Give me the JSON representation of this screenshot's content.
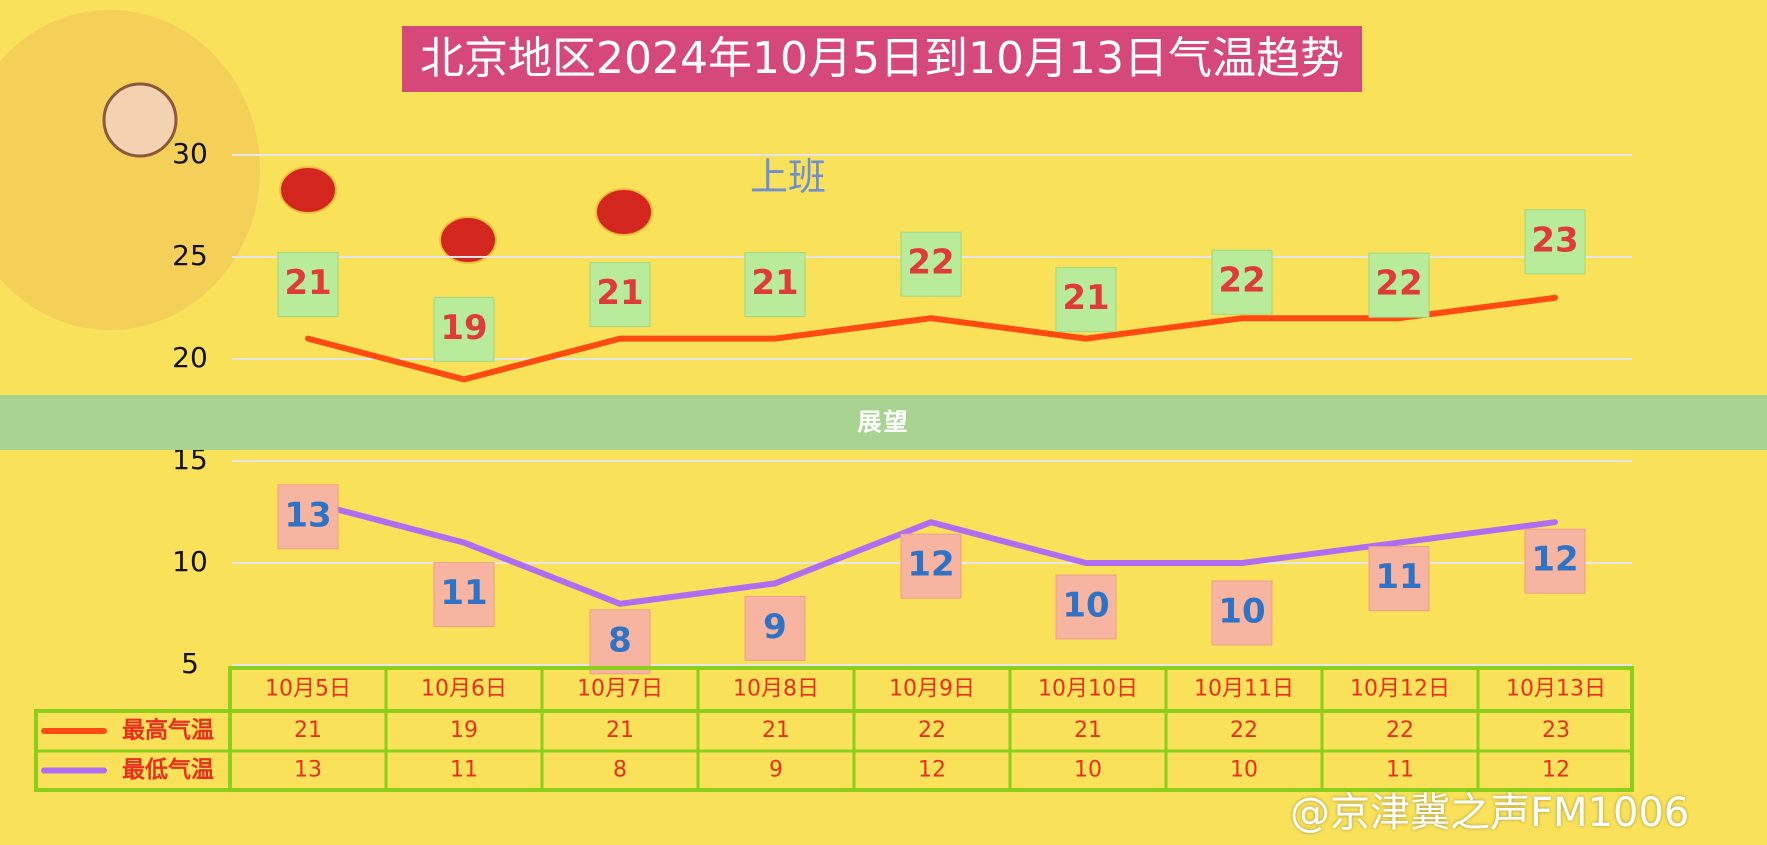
{
  "title": "北京地区2024年10月5日到10月13日气温趋势",
  "overlay": {
    "label": "展望"
  },
  "watermark": "@京津冀之声FM1006",
  "stamp_text": "上班",
  "colors": {
    "background": "#f9e15a",
    "title_bg": "#d6487a",
    "high_line": "#ff4a12",
    "low_line": "#b06df2",
    "table_border": "#8ccf1a",
    "table_text": "#e8301e",
    "high_label_text": "#e03a3a",
    "low_label_text": "#2f73c7",
    "grid": "#e6e6e6"
  },
  "chart_data": {
    "type": "line",
    "title": "北京地区2024年10月5日到10月13日气温趋势",
    "categories": [
      "10月5日",
      "10月6日",
      "10月7日",
      "10月8日",
      "10月9日",
      "10月10日",
      "10月11日",
      "10月12日",
      "10月13日"
    ],
    "series": [
      {
        "name": "最高气温",
        "values": [
          21,
          19,
          21,
          21,
          22,
          21,
          22,
          22,
          23
        ]
      },
      {
        "name": "最低气温",
        "values": [
          13,
          11,
          8,
          9,
          12,
          10,
          10,
          11,
          12
        ]
      }
    ],
    "y_ticks": [
      5,
      10,
      15,
      20,
      25,
      30
    ],
    "ylim": [
      5,
      30
    ],
    "grid": true,
    "legend": "in table"
  }
}
